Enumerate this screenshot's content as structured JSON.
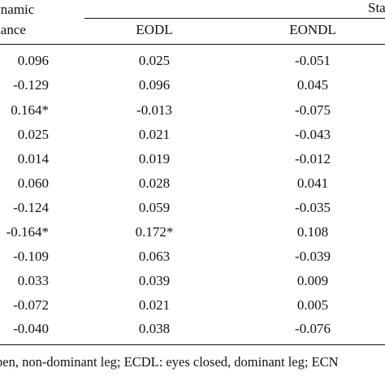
{
  "header": {
    "dynamic_line1": "Dynamic",
    "dynamic_line2": "balance",
    "static_partial": "Sta",
    "col_eodl": "EODL",
    "col_eondl": "EONDL"
  },
  "rows": [
    {
      "dynamic": "0.096",
      "eodl": "0.025",
      "eondl": "-0.051"
    },
    {
      "dynamic": "-0.129",
      "eodl": "0.096",
      "eondl": "0.045"
    },
    {
      "dynamic": "0.164*",
      "eodl": "-0.013",
      "eondl": "-0.075"
    },
    {
      "dynamic": "0.025",
      "eodl": "0.021",
      "eondl": "-0.043"
    },
    {
      "dynamic": "0.014",
      "eodl": "0.019",
      "eondl": "-0.012"
    },
    {
      "dynamic": "0.060",
      "eodl": "0.028",
      "eondl": "0.041"
    },
    {
      "dynamic": "-0.124",
      "eodl": "0.059",
      "eondl": "-0.035"
    },
    {
      "dynamic": "-0.164*",
      "eodl": "0.172*",
      "eondl": "0.108"
    },
    {
      "dynamic": "-0.109",
      "eodl": "0.063",
      "eondl": "-0.039"
    },
    {
      "dynamic": "0.033",
      "eodl": "0.039",
      "eondl": "0.009"
    },
    {
      "dynamic": "-0.072",
      "eodl": "0.021",
      "eondl": "0.005"
    },
    {
      "dynamic": "-0.040",
      "eodl": "0.038",
      "eondl": "-0.076"
    }
  ],
  "footnote": "pen, non-dominant leg; ECDL: eyes closed, dominant leg; ECN"
}
